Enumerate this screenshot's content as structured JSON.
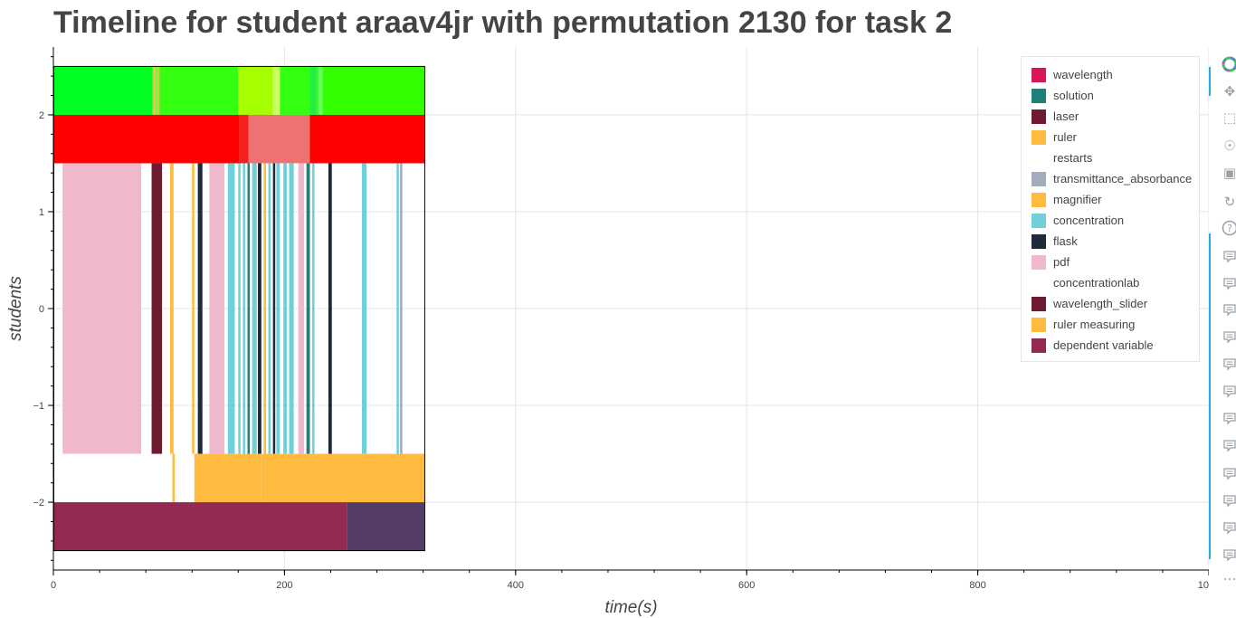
{
  "title": "Timeline for student araav4jr with permutation 2130 for task 2",
  "chart_data": {
    "type": "timeline",
    "title": "Timeline for student araav4jr with permutation 2130 for task 2",
    "xlabel": "time(s)",
    "ylabel": "students",
    "xlim": [
      0,
      1000
    ],
    "ylim": [
      -2.7,
      2.7
    ],
    "x_ticks": [
      0,
      200,
      400,
      600,
      800,
      1000
    ],
    "y_ticks": [
      -2,
      -1,
      0,
      1,
      2
    ],
    "grid": true,
    "legend_position": "top-right",
    "legend": [
      {
        "label": "wavelength",
        "color": "#d6185a"
      },
      {
        "label": "solution",
        "color": "#1f8079"
      },
      {
        "label": "laser",
        "color": "#6e1a31"
      },
      {
        "label": "ruler",
        "color": "#ffbb40"
      },
      {
        "label": "restarts",
        "color": "#ffffff"
      },
      {
        "label": "transmittance_absorbance",
        "color": "#a1acbd"
      },
      {
        "label": "magnifier",
        "color": "#ffbb40"
      },
      {
        "label": "concentration",
        "color": "#6fd0d9"
      },
      {
        "label": "flask",
        "color": "#1d2b3d"
      },
      {
        "label": "pdf",
        "color": "#f0b8cc"
      },
      {
        "label": "concentrationlab",
        "color": "#ffffff"
      },
      {
        "label": "wavelength_slider",
        "color": "#6e1a31"
      },
      {
        "label": "ruler measuring",
        "color": "#ffbb40"
      },
      {
        "label": "dependent variable",
        "color": "#922a53"
      }
    ],
    "bands": [
      {
        "y0": 2.0,
        "y1": 2.5,
        "segments": [
          {
            "x0": 0,
            "x1": 86,
            "color": "#00ff22"
          },
          {
            "x0": 86,
            "x1": 88,
            "color": "#ffbb40"
          },
          {
            "x0": 88,
            "x1": 90,
            "color": "#66ff33"
          },
          {
            "x0": 90,
            "x1": 92,
            "color": "#cccc55"
          },
          {
            "x0": 92,
            "x1": 160,
            "color": "#33ff11"
          },
          {
            "x0": 160,
            "x1": 190,
            "color": "#a6ff00"
          },
          {
            "x0": 190,
            "x1": 196,
            "color": "#c8ff66"
          },
          {
            "x0": 196,
            "x1": 222,
            "color": "#33ff11"
          },
          {
            "x0": 222,
            "x1": 228,
            "color": "#22ee44"
          },
          {
            "x0": 228,
            "x1": 230,
            "color": "#33ff11"
          },
          {
            "x0": 230,
            "x1": 233,
            "color": "#66ff66"
          },
          {
            "x0": 233,
            "x1": 321,
            "color": "#33ff00"
          }
        ]
      },
      {
        "y0": 1.5,
        "y1": 2.0,
        "segments": [
          {
            "x0": 0,
            "x1": 161,
            "color": "#ff0000"
          },
          {
            "x0": 161,
            "x1": 169,
            "color": "#f32020"
          },
          {
            "x0": 169,
            "x1": 222,
            "color": "#ee7272"
          },
          {
            "x0": 222,
            "x1": 321,
            "color": "#ff0000"
          }
        ]
      },
      {
        "y0": -1.5,
        "y1": 1.5,
        "segments": [
          {
            "x0": 8,
            "x1": 76,
            "color": "#f0b8cc"
          },
          {
            "x0": 85,
            "x1": 94,
            "color": "#6e1a31"
          },
          {
            "x0": 101,
            "x1": 104,
            "color": "#ffbb40"
          },
          {
            "x0": 120,
            "x1": 122,
            "color": "#ffbb40"
          },
          {
            "x0": 125,
            "x1": 129,
            "color": "#1d2b3d"
          },
          {
            "x0": 135,
            "x1": 148,
            "color": "#f0b8cc"
          },
          {
            "x0": 151,
            "x1": 157,
            "color": "#6fd0d9"
          },
          {
            "x0": 160,
            "x1": 162,
            "color": "#6fd0d9"
          },
          {
            "x0": 164,
            "x1": 166,
            "color": "#6fd0d9"
          },
          {
            "x0": 168,
            "x1": 170,
            "color": "#1f8079"
          },
          {
            "x0": 172,
            "x1": 176,
            "color": "#6fd0d9"
          },
          {
            "x0": 177,
            "x1": 180,
            "color": "#1d2b3d"
          },
          {
            "x0": 182,
            "x1": 184,
            "color": "#ffbb40"
          },
          {
            "x0": 186,
            "x1": 188,
            "color": "#6fd0d9"
          },
          {
            "x0": 190,
            "x1": 192,
            "color": "#1d2b3d"
          },
          {
            "x0": 193,
            "x1": 196,
            "color": "#6fd0d9"
          },
          {
            "x0": 199,
            "x1": 202,
            "color": "#6fd0d9"
          },
          {
            "x0": 204,
            "x1": 208,
            "color": "#6fd0d9"
          },
          {
            "x0": 212,
            "x1": 217,
            "color": "#f0b8cc"
          },
          {
            "x0": 219,
            "x1": 222,
            "color": "#1f8079"
          },
          {
            "x0": 224,
            "x1": 226,
            "color": "#6fd0d9"
          },
          {
            "x0": 238,
            "x1": 241,
            "color": "#1d2b3d"
          },
          {
            "x0": 267,
            "x1": 271,
            "color": "#6fd0d9"
          },
          {
            "x0": 297,
            "x1": 299,
            "color": "#6fd0d9"
          },
          {
            "x0": 300,
            "x1": 302,
            "color": "#a1acbd"
          }
        ]
      },
      {
        "y0": -2.0,
        "y1": -1.5,
        "segments": [
          {
            "x0": 103,
            "x1": 105,
            "color": "#ffbb40"
          },
          {
            "x0": 122,
            "x1": 180,
            "color": "#ffbb40"
          },
          {
            "x0": 180,
            "x1": 321,
            "color": "#ffbb40"
          }
        ]
      },
      {
        "y0": -2.5,
        "y1": -2.0,
        "segments": [
          {
            "x0": 0,
            "x1": 254,
            "color": "#922a53"
          },
          {
            "x0": 254,
            "x1": 321,
            "color": "#533c66"
          }
        ]
      }
    ]
  },
  "toolbar": {
    "icons": [
      "bokeh-logo-icon",
      "pan-icon",
      "box-zoom-icon",
      "wheel-zoom-icon",
      "save-icon",
      "reset-icon",
      "help-icon",
      "hover-icon",
      "hover-icon",
      "hover-icon",
      "hover-icon",
      "hover-icon",
      "hover-icon",
      "hover-icon",
      "hover-icon",
      "hover-icon",
      "hover-icon",
      "hover-icon",
      "hover-icon",
      "more-icon"
    ],
    "accent_color": "#26aae1"
  }
}
